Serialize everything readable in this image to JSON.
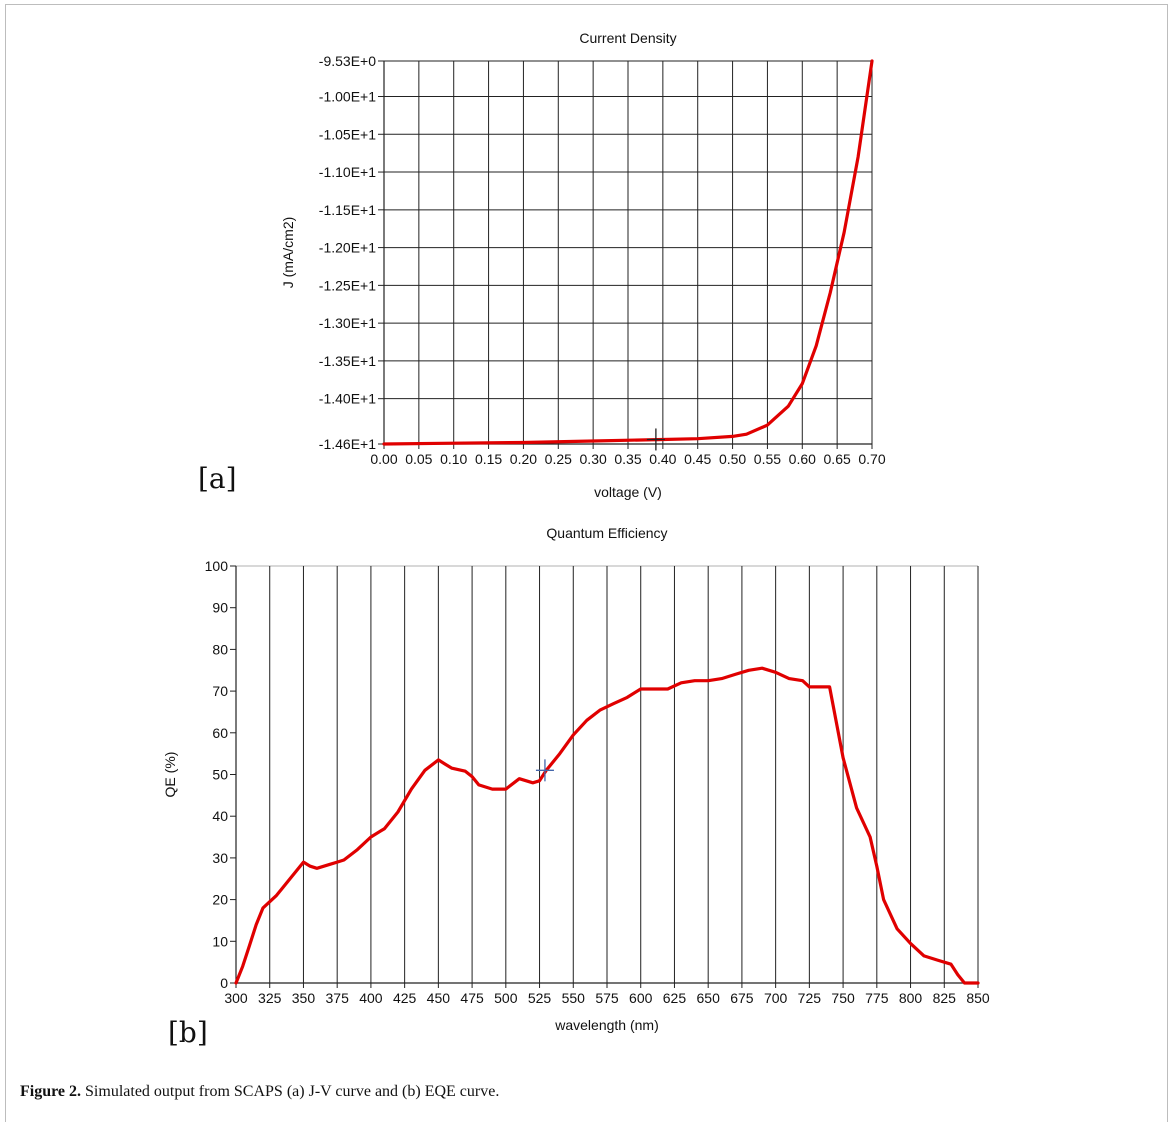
{
  "figure": {
    "caption_label": "Figure 2.",
    "caption_text": " Simulated output from SCAPS (a) J-V curve and (b) EQE curve."
  },
  "chart_data": [
    {
      "type": "line",
      "panel_label": "[a]",
      "title": "Current Density",
      "xlabel": "voltage (V)",
      "ylabel": "J (mA/cm2)",
      "xlim": [
        0.0,
        0.7
      ],
      "ylim": [
        -14.6,
        -9.53
      ],
      "grid": true,
      "x_ticks": [
        "0.00",
        "0.05",
        "0.10",
        "0.15",
        "0.20",
        "0.25",
        "0.30",
        "0.35",
        "0.40",
        "0.45",
        "0.50",
        "0.55",
        "0.60",
        "0.65",
        "0.70"
      ],
      "y_ticks": [
        {
          "value": -9.53,
          "label": "-9.53E+0"
        },
        {
          "value": -10.0,
          "label": "-1.00E+1"
        },
        {
          "value": -10.5,
          "label": "-1.05E+1"
        },
        {
          "value": -11.0,
          "label": "-1.10E+1"
        },
        {
          "value": -11.5,
          "label": "-1.15E+1"
        },
        {
          "value": -12.0,
          "label": "-1.20E+1"
        },
        {
          "value": -12.5,
          "label": "-1.25E+1"
        },
        {
          "value": -13.0,
          "label": "-1.30E+1"
        },
        {
          "value": -13.5,
          "label": "-1.35E+1"
        },
        {
          "value": -14.0,
          "label": "-1.40E+1"
        },
        {
          "value": -14.6,
          "label": "-1.46E+1"
        }
      ],
      "series": [
        {
          "color": "#e00000",
          "x": [
            0.0,
            0.1,
            0.2,
            0.3,
            0.4,
            0.45,
            0.5,
            0.52,
            0.55,
            0.58,
            0.6,
            0.62,
            0.64,
            0.66,
            0.68,
            0.7
          ],
          "y": [
            -14.6,
            -14.59,
            -14.58,
            -14.56,
            -14.54,
            -14.53,
            -14.5,
            -14.47,
            -14.35,
            -14.1,
            -13.8,
            -13.3,
            -12.6,
            -11.8,
            -10.8,
            -9.53
          ]
        }
      ],
      "cursor": {
        "x": 0.39,
        "y": -14.54
      }
    },
    {
      "type": "line",
      "panel_label": "[b]",
      "title": "Quantum Efficiency",
      "xlabel": "wavelength (nm)",
      "ylabel": "QE (%)",
      "xlim": [
        300,
        850
      ],
      "ylim": [
        0,
        100
      ],
      "grid": true,
      "x_ticks": [
        "300",
        "325",
        "350",
        "375",
        "400",
        "425",
        "450",
        "475",
        "500",
        "525",
        "550",
        "575",
        "600",
        "625",
        "650",
        "675",
        "700",
        "725",
        "750",
        "775",
        "800",
        "825",
        "850"
      ],
      "y_ticks": [
        {
          "value": 0,
          "label": "0"
        },
        {
          "value": 10,
          "label": "10"
        },
        {
          "value": 20,
          "label": "20"
        },
        {
          "value": 30,
          "label": "30"
        },
        {
          "value": 40,
          "label": "40"
        },
        {
          "value": 50,
          "label": "50"
        },
        {
          "value": 60,
          "label": "60"
        },
        {
          "value": 70,
          "label": "70"
        },
        {
          "value": 80,
          "label": "80"
        },
        {
          "value": 90,
          "label": "90"
        },
        {
          "value": 100,
          "label": "100"
        }
      ],
      "series": [
        {
          "color": "#e00000",
          "x": [
            300,
            305,
            310,
            315,
            320,
            330,
            340,
            350,
            355,
            360,
            370,
            375,
            380,
            390,
            400,
            410,
            420,
            430,
            440,
            450,
            455,
            460,
            470,
            475,
            480,
            490,
            500,
            510,
            520,
            525,
            530,
            540,
            550,
            560,
            570,
            580,
            590,
            600,
            610,
            620,
            630,
            640,
            650,
            660,
            670,
            680,
            690,
            700,
            710,
            720,
            725,
            730,
            735,
            740,
            750,
            760,
            770,
            775,
            780,
            790,
            800,
            810,
            820,
            830,
            835,
            840,
            845,
            850
          ],
          "y": [
            0,
            4,
            9,
            14,
            18,
            21,
            25,
            29,
            28,
            27.5,
            28.5,
            29,
            29.5,
            32,
            35,
            37,
            41,
            46.5,
            51,
            53.5,
            52.5,
            51.5,
            50.8,
            49.5,
            47.5,
            46.5,
            46.5,
            49,
            48,
            48.5,
            51,
            55,
            59.5,
            63,
            65.5,
            67,
            68.5,
            70.5,
            70.5,
            70.5,
            72,
            72.5,
            72.5,
            73,
            74,
            75,
            75.5,
            74.5,
            73,
            72.5,
            71,
            71,
            71,
            71,
            54,
            42,
            35,
            28,
            20,
            13,
            9.5,
            6.5,
            5.5,
            4.5,
            2,
            0,
            0,
            0
          ]
        }
      ],
      "cursor": {
        "x": 529,
        "y": 51
      }
    }
  ]
}
